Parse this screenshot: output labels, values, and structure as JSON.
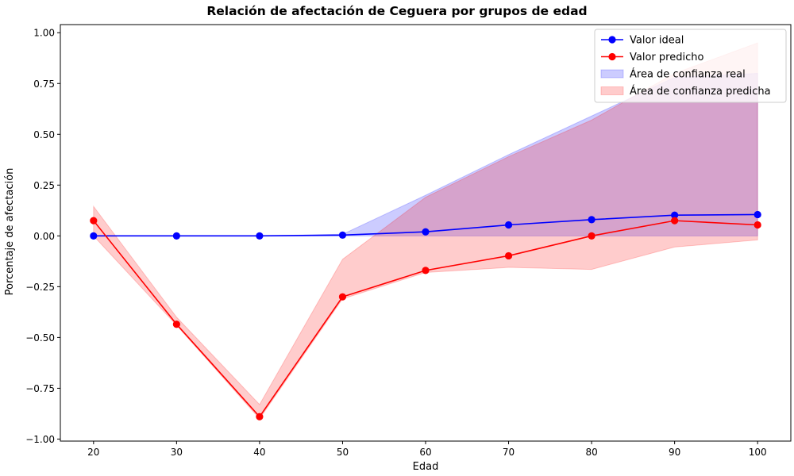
{
  "chart_data": {
    "type": "line",
    "title": "Relación de afectación de Ceguera por grupos de edad",
    "xlabel": "Edad",
    "ylabel": "Porcentaje de afectación",
    "x": [
      20,
      30,
      40,
      50,
      60,
      70,
      80,
      90,
      100
    ],
    "xticks": [
      20,
      30,
      40,
      50,
      60,
      70,
      80,
      90,
      100
    ],
    "xlim": [
      16,
      104
    ],
    "ylim": [
      -1.01,
      1.04
    ],
    "yticks": [
      -1.0,
      -0.75,
      -0.5,
      -0.25,
      0.0,
      0.25,
      0.5,
      0.75,
      1.0
    ],
    "ytick_labels": [
      "−1.00",
      "−0.75",
      "−0.50",
      "−0.25",
      "0.00",
      "0.25",
      "0.50",
      "0.75",
      "1.00"
    ],
    "grid": false,
    "legend_position": "top-right",
    "series": [
      {
        "name": "Valor ideal",
        "color": "#0000ff",
        "marker": "circle",
        "values": [
          0.0,
          0.0,
          0.0,
          0.004,
          0.02,
          0.054,
          0.08,
          0.102,
          0.105
        ]
      },
      {
        "name": "Valor predicho",
        "color": "#ff0000",
        "marker": "circle",
        "values": [
          0.075,
          -0.435,
          -0.89,
          -0.3,
          -0.17,
          -0.098,
          0.0,
          0.075,
          0.054
        ]
      }
    ],
    "bands": [
      {
        "name": "Área de confianza real",
        "color": "#0000ff",
        "opacity": 0.2,
        "lower": [
          0.0,
          0.0,
          0.0,
          0.0,
          0.0,
          0.0,
          0.0,
          0.0,
          0.0
        ],
        "upper": [
          0.0,
          0.0,
          0.0,
          0.008,
          0.2,
          0.4,
          0.59,
          0.78,
          0.8
        ]
      },
      {
        "name": "Área de confianza predicha",
        "color": "#ff0000",
        "opacity": 0.2,
        "lower": [
          0.0,
          -0.44,
          -0.9,
          -0.31,
          -0.18,
          -0.155,
          -0.165,
          -0.055,
          -0.02
        ],
        "upper": [
          0.145,
          -0.4,
          -0.83,
          -0.115,
          0.19,
          0.39,
          0.57,
          0.8,
          0.95
        ]
      }
    ]
  }
}
